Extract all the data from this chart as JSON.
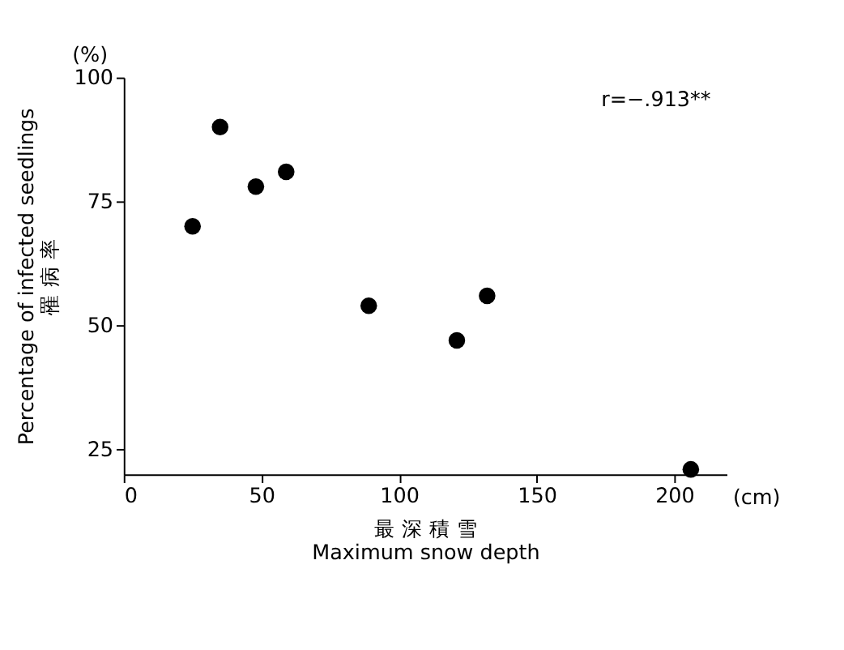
{
  "chart_data": {
    "type": "scatter",
    "xlabel": "最 深 積 雪\nMaximum snow depth",
    "ylabel": "Percentage of infected seedlings\n罹 病 率",
    "x": [
      25,
      35,
      48,
      59,
      89,
      121,
      132,
      206
    ],
    "series": [
      {
        "color": "#000000",
        "values": [
          70,
          90,
          78,
          81,
          54,
          47,
          56,
          21
        ]
      }
    ],
    "xlim": [
      0,
      219
    ],
    "ylim": [
      20,
      100
    ],
    "xticks": [
      0,
      50,
      100,
      150,
      200
    ],
    "yticks": [
      25,
      50,
      75,
      100
    ],
    "grid": false,
    "marker": "circle",
    "annotations": [
      "(%)",
      "(cm)",
      "r=−.913**"
    ]
  }
}
